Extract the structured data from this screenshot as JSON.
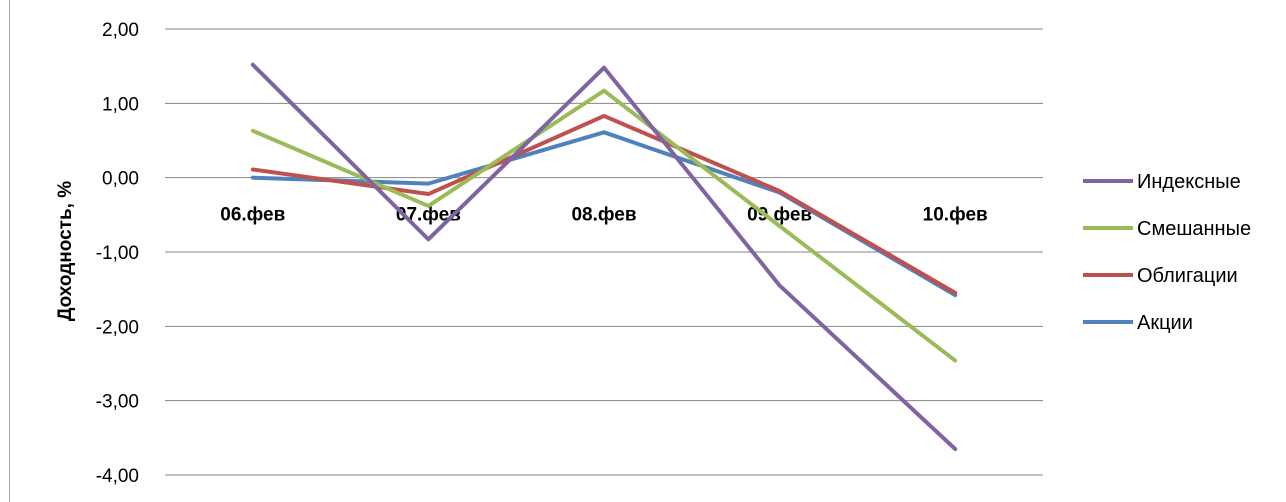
{
  "chart_data": {
    "type": "line",
    "title": "",
    "xlabel": "",
    "ylabel": "Доходность, %",
    "categories": [
      "06.фев",
      "07.фев",
      "08.фев",
      "09.фев",
      "10.фев"
    ],
    "ylim": [
      -4,
      2
    ],
    "yticks": [
      2,
      1,
      0,
      -1,
      -2,
      -3,
      -4
    ],
    "ytick_labels": [
      "2,00",
      "1,00",
      "0,00",
      "-1,00",
      "-2,00",
      "-3,00",
      "-4,00"
    ],
    "grid": true,
    "legend_position": "right",
    "series": [
      {
        "name": "Индексные",
        "color": "#8064a2",
        "values": [
          1.52,
          -0.83,
          1.48,
          -1.45,
          -3.65
        ]
      },
      {
        "name": "Смешанные",
        "color": "#9bbb59",
        "values": [
          0.63,
          -0.38,
          1.17,
          -0.65,
          -2.46
        ]
      },
      {
        "name": "Облигации",
        "color": "#c0504d",
        "values": [
          0.11,
          -0.22,
          0.83,
          -0.18,
          -1.55
        ]
      },
      {
        "name": "Акции",
        "color": "#4f81bd",
        "values": [
          0.0,
          -0.08,
          0.61,
          -0.2,
          -1.58
        ]
      }
    ]
  }
}
